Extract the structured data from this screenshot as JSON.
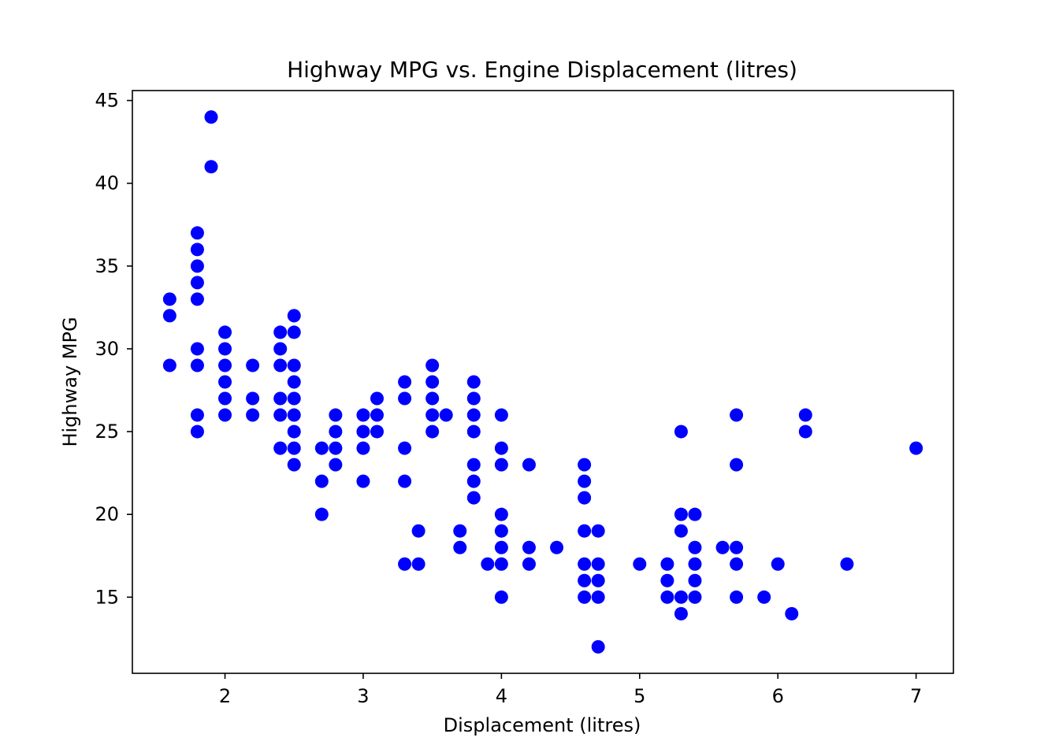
{
  "chart_data": {
    "type": "scatter",
    "title": "Highway MPG vs. Engine Displacement (litres)",
    "xlabel": "Displacement (litres)",
    "ylabel": "Highway MPG",
    "xlim": [
      1.33,
      7.27
    ],
    "ylim": [
      10.4,
      45.6
    ],
    "xticks": [
      2,
      3,
      4,
      5,
      6,
      7
    ],
    "yticks": [
      15,
      20,
      25,
      30,
      35,
      40,
      45
    ],
    "grid": false,
    "legend": "none",
    "marker_color": "#0000ff",
    "series": [
      {
        "points": [
          [
            1.6,
            33
          ],
          [
            1.6,
            32
          ],
          [
            1.6,
            29
          ],
          [
            1.8,
            37
          ],
          [
            1.8,
            36
          ],
          [
            1.8,
            35
          ],
          [
            1.8,
            34
          ],
          [
            1.8,
            33
          ],
          [
            1.8,
            30
          ],
          [
            1.8,
            29
          ],
          [
            1.8,
            26
          ],
          [
            1.8,
            25
          ],
          [
            1.9,
            44
          ],
          [
            1.9,
            41
          ],
          [
            2.0,
            31
          ],
          [
            2.0,
            30
          ],
          [
            2.0,
            29
          ],
          [
            2.0,
            28
          ],
          [
            2.0,
            27
          ],
          [
            2.0,
            26
          ],
          [
            2.2,
            29
          ],
          [
            2.2,
            27
          ],
          [
            2.2,
            26
          ],
          [
            2.4,
            31
          ],
          [
            2.4,
            30
          ],
          [
            2.4,
            29
          ],
          [
            2.4,
            27
          ],
          [
            2.4,
            26
          ],
          [
            2.4,
            24
          ],
          [
            2.5,
            32
          ],
          [
            2.5,
            31
          ],
          [
            2.5,
            29
          ],
          [
            2.5,
            28
          ],
          [
            2.5,
            27
          ],
          [
            2.5,
            26
          ],
          [
            2.5,
            25
          ],
          [
            2.5,
            24
          ],
          [
            2.5,
            23
          ],
          [
            2.7,
            24
          ],
          [
            2.7,
            22
          ],
          [
            2.7,
            20
          ],
          [
            2.8,
            26
          ],
          [
            2.8,
            25
          ],
          [
            2.8,
            24
          ],
          [
            2.8,
            23
          ],
          [
            3.0,
            26
          ],
          [
            3.0,
            25
          ],
          [
            3.0,
            24
          ],
          [
            3.0,
            22
          ],
          [
            3.1,
            27
          ],
          [
            3.1,
            26
          ],
          [
            3.1,
            25
          ],
          [
            3.3,
            28
          ],
          [
            3.3,
            27
          ],
          [
            3.3,
            24
          ],
          [
            3.3,
            22
          ],
          [
            3.3,
            17
          ],
          [
            3.4,
            19
          ],
          [
            3.4,
            17
          ],
          [
            3.5,
            29
          ],
          [
            3.5,
            28
          ],
          [
            3.5,
            27
          ],
          [
            3.5,
            26
          ],
          [
            3.5,
            25
          ],
          [
            3.6,
            26
          ],
          [
            3.7,
            19
          ],
          [
            3.7,
            18
          ],
          [
            3.8,
            28
          ],
          [
            3.8,
            27
          ],
          [
            3.8,
            26
          ],
          [
            3.8,
            25
          ],
          [
            3.8,
            23
          ],
          [
            3.8,
            22
          ],
          [
            3.8,
            21
          ],
          [
            3.9,
            17
          ],
          [
            4.0,
            26
          ],
          [
            4.0,
            24
          ],
          [
            4.0,
            23
          ],
          [
            4.0,
            20
          ],
          [
            4.0,
            19
          ],
          [
            4.0,
            18
          ],
          [
            4.0,
            17
          ],
          [
            4.0,
            15
          ],
          [
            4.2,
            23
          ],
          [
            4.2,
            18
          ],
          [
            4.2,
            17
          ],
          [
            4.4,
            18
          ],
          [
            4.6,
            23
          ],
          [
            4.6,
            22
          ],
          [
            4.6,
            21
          ],
          [
            4.6,
            19
          ],
          [
            4.6,
            17
          ],
          [
            4.6,
            16
          ],
          [
            4.6,
            15
          ],
          [
            4.7,
            19
          ],
          [
            4.7,
            17
          ],
          [
            4.7,
            16
          ],
          [
            4.7,
            15
          ],
          [
            4.7,
            12
          ],
          [
            5.0,
            17
          ],
          [
            5.2,
            17
          ],
          [
            5.2,
            16
          ],
          [
            5.2,
            15
          ],
          [
            5.3,
            25
          ],
          [
            5.3,
            20
          ],
          [
            5.3,
            19
          ],
          [
            5.3,
            15
          ],
          [
            5.3,
            14
          ],
          [
            5.4,
            20
          ],
          [
            5.4,
            18
          ],
          [
            5.4,
            17
          ],
          [
            5.4,
            16
          ],
          [
            5.4,
            15
          ],
          [
            5.6,
            18
          ],
          [
            5.7,
            26
          ],
          [
            5.7,
            23
          ],
          [
            5.7,
            18
          ],
          [
            5.7,
            17
          ],
          [
            5.7,
            15
          ],
          [
            5.9,
            15
          ],
          [
            6.0,
            17
          ],
          [
            6.1,
            14
          ],
          [
            6.2,
            26
          ],
          [
            6.2,
            25
          ],
          [
            6.5,
            17
          ],
          [
            7.0,
            24
          ]
        ]
      }
    ]
  }
}
